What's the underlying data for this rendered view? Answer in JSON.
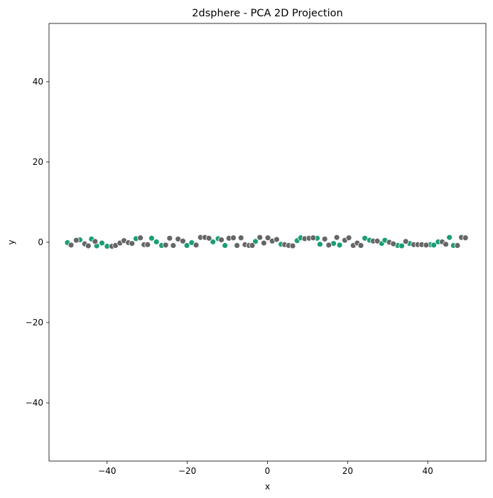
{
  "chart_data": {
    "type": "scatter",
    "title": "2dsphere - PCA 2D Projection",
    "xlabel": "x",
    "ylabel": "y",
    "xlim": [
      -54.5,
      54.5
    ],
    "ylim": [
      -54.5,
      54.5
    ],
    "xticks": [
      -40,
      -20,
      0,
      20,
      40
    ],
    "yticks": [
      -40,
      -20,
      0,
      20,
      40
    ],
    "tick_labels_x": [
      "−40",
      "−20",
      "0",
      "20",
      "40"
    ],
    "tick_labels_y": [
      "−40",
      "−20",
      "0",
      "20",
      "40"
    ],
    "grid": false,
    "legend": "none",
    "colors": {
      "green": "#1b9e77",
      "gray": "#666666"
    },
    "series": [
      {
        "color": "#1b9e77",
        "points": [
          [
            -49.9,
            -0.1
          ],
          [
            -46.8,
            0.6
          ],
          [
            -43.9,
            0.8
          ],
          [
            -42.6,
            -0.9
          ],
          [
            -41.3,
            -0.2
          ],
          [
            -40.0,
            -1.0
          ],
          [
            -32.8,
            0.9
          ],
          [
            -28.9,
            1.0
          ],
          [
            -27.7,
            0.1
          ],
          [
            -26.4,
            -0.8
          ],
          [
            -20.1,
            -0.8
          ],
          [
            -18.9,
            -0.1
          ],
          [
            -13.6,
            0.1
          ],
          [
            -12.3,
            0.9
          ],
          [
            -10.6,
            -0.8
          ],
          [
            -3.0,
            0.2
          ],
          [
            3.4,
            -0.5
          ],
          [
            7.4,
            0.4
          ],
          [
            8.3,
            1.1
          ],
          [
            12.4,
            1.0
          ],
          [
            13.1,
            -0.5
          ],
          [
            16.5,
            -0.3
          ],
          [
            18.0,
            -0.7
          ],
          [
            24.3,
            1.0
          ],
          [
            25.5,
            0.5
          ],
          [
            28.5,
            -0.3
          ],
          [
            29.3,
            0.5
          ],
          [
            32.5,
            -0.8
          ],
          [
            33.5,
            -0.9
          ],
          [
            35.5,
            -0.3
          ],
          [
            40.6,
            -0.6
          ],
          [
            41.5,
            -0.7
          ],
          [
            42.6,
            0.1
          ],
          [
            45.4,
            1.2
          ],
          [
            46.4,
            -0.8
          ]
        ]
      },
      {
        "color": "#666666",
        "points": [
          [
            -49.0,
            -0.7
          ],
          [
            -47.7,
            0.5
          ],
          [
            -45.6,
            -0.4
          ],
          [
            -44.7,
            -0.9
          ],
          [
            -43.0,
            0.2
          ],
          [
            -38.8,
            -1.0
          ],
          [
            -37.9,
            -0.8
          ],
          [
            -36.8,
            -0.2
          ],
          [
            -35.8,
            0.4
          ],
          [
            -34.7,
            -0.1
          ],
          [
            -33.8,
            -0.3
          ],
          [
            -31.7,
            1.1
          ],
          [
            -30.8,
            -0.6
          ],
          [
            -29.9,
            -0.6
          ],
          [
            -25.4,
            -0.7
          ],
          [
            -24.4,
            1.0
          ],
          [
            -23.5,
            -0.8
          ],
          [
            -22.3,
            0.8
          ],
          [
            -21.1,
            0.3
          ],
          [
            -17.8,
            -0.7
          ],
          [
            -16.7,
            1.2
          ],
          [
            -15.6,
            1.2
          ],
          [
            -14.6,
            1.0
          ],
          [
            -11.5,
            0.6
          ],
          [
            -9.6,
            1.0
          ],
          [
            -8.5,
            1.1
          ],
          [
            -7.6,
            -0.8
          ],
          [
            -6.6,
            1.1
          ],
          [
            -5.6,
            -0.6
          ],
          [
            -4.6,
            -0.8
          ],
          [
            -3.8,
            -0.8
          ],
          [
            -1.9,
            1.2
          ],
          [
            -0.9,
            -0.2
          ],
          [
            0.1,
            1.1
          ],
          [
            1.2,
            0.3
          ],
          [
            2.3,
            0.7
          ],
          [
            4.3,
            -0.6
          ],
          [
            5.3,
            -0.8
          ],
          [
            6.3,
            -0.9
          ],
          [
            9.3,
            0.9
          ],
          [
            10.4,
            1.0
          ],
          [
            11.4,
            1.1
          ],
          [
            14.3,
            0.8
          ],
          [
            15.3,
            -0.7
          ],
          [
            17.3,
            1.2
          ],
          [
            19.3,
            0.5
          ],
          [
            20.3,
            1.1
          ],
          [
            21.4,
            -0.8
          ],
          [
            22.4,
            -0.2
          ],
          [
            23.3,
            -0.8
          ],
          [
            26.4,
            0.3
          ],
          [
            27.4,
            0.3
          ],
          [
            30.4,
            0.0
          ],
          [
            31.4,
            -0.4
          ],
          [
            34.5,
            0.2
          ],
          [
            36.5,
            -0.6
          ],
          [
            37.5,
            -0.6
          ],
          [
            38.5,
            -0.6
          ],
          [
            39.6,
            -0.7
          ],
          [
            43.6,
            0.1
          ],
          [
            44.5,
            -0.5
          ],
          [
            47.4,
            -0.8
          ],
          [
            48.4,
            1.2
          ],
          [
            49.4,
            1.1
          ]
        ]
      }
    ]
  }
}
